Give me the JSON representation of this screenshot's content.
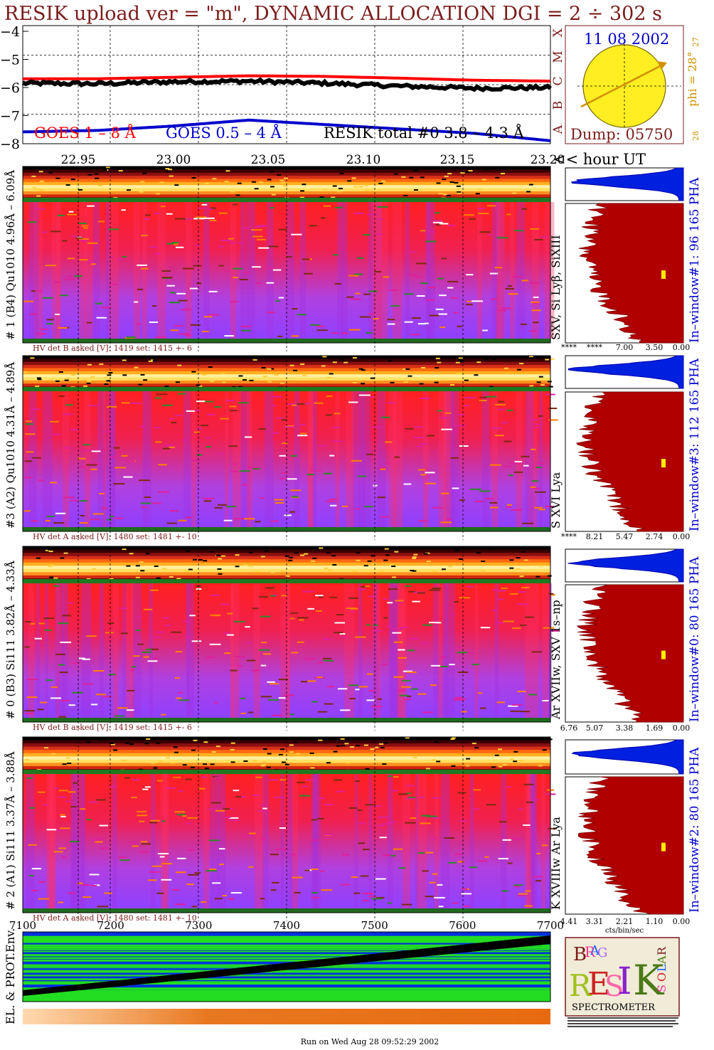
{
  "header": {
    "title": "RESIK upload ver = \"m\", DYNAMIC ALLOCATION  DGI =   2 ÷ 302 s",
    "title_color": "#7a1c1c"
  },
  "lightcurve": {
    "y_ticks": [
      "−4",
      "−5",
      "−6",
      "−7",
      "−8"
    ],
    "ylim": [
      -8,
      -4
    ],
    "legend": [
      {
        "label": "GOES 1 – 8 Å",
        "color": "#ff0000"
      },
      {
        "label": "GOES 0.5 – 4 Å",
        "color": "#0000cc"
      },
      {
        "label": "RESIK total #0  3.8 – 4.3 Å",
        "color": "#000000"
      }
    ],
    "class_letters": [
      "X",
      "M",
      "C",
      "B",
      "A"
    ],
    "time_ticks": [
      "22.95",
      "23.00",
      "23.05",
      "23.10",
      "23.15",
      "23.20"
    ],
    "time_axis_label": "<< hour UT"
  },
  "sun_panel": {
    "date": "11 08 2002",
    "phi": "phi = 28°",
    "side_top": "27",
    "side_bottom": "28",
    "dump": "Dump: 05750"
  },
  "detectors": [
    {
      "left_label": "# 1 (B4) Qu1010 4.96Å – 6.09Å",
      "right_label": "SXV, Si Lyβ, SiXIII",
      "hv_text": "HV det B asked [V]:  1419 set:  1415 +-   6",
      "pha_label": "In–window#1:  96 165 PHA",
      "axis_ticks": [
        "****",
        "****",
        "7.00",
        "3.50",
        "0.00"
      ]
    },
    {
      "left_label": "#3 (A2) Qu1010  4.31Å – 4.89Å",
      "right_label": "S XVI Lya",
      "hv_text": "HV det A asked [V]:  1480 set:  1481 +-   10",
      "pha_label": "In–window#3:  112 165 PHA",
      "axis_ticks": [
        "****",
        "8.21",
        "5.47",
        "2.74",
        "0.00"
      ]
    },
    {
      "left_label": "# 0 (B3) Si111  3.82Å – 4.33Å",
      "right_label": "Ar XVIIw,  SXV 1s–np",
      "hv_text": "HV det B asked [V]:  1419 set:  1415 +-   6",
      "pha_label": "In–window#0:  80 165 PHA",
      "axis_ticks": [
        "6.76",
        "5.07",
        "3.38",
        "1.69",
        "0.00"
      ]
    },
    {
      "left_label": "# 2 (A1) Si111  3.37Å – 3.88Å",
      "right_label": "K XVIIIw  Ar Lya",
      "hv_text": "HV det A asked [V]:  1480 set:  1481 +-   10",
      "pha_label": "In–window#2:  80 165 PHA",
      "axis_ticks": [
        "4.41",
        "3.31",
        "2.21",
        "1.10",
        "0.00"
      ]
    }
  ],
  "pha_axis_unit": "cts/bin/sec",
  "bottom_axis": {
    "ticks": [
      "7100",
      "7200",
      "7300",
      "7400",
      "7500",
      "7600",
      "7700"
    ]
  },
  "env": {
    "label": "EL. & PROT.Env."
  },
  "logo": {
    "letters": [
      "B",
      "R",
      "A",
      "G",
      "R",
      "E",
      "S",
      "I",
      "K",
      "S",
      "O",
      "L",
      "A",
      "R"
    ],
    "subtitle": "SPECTROMETER"
  },
  "footer": {
    "run_text": "Run on Wed Aug 28 09:52:29 2002"
  },
  "chart_data": {
    "type": "line",
    "title": "RESIK upload ver = \"m\", DYNAMIC ALLOCATION  DGI =   2 ÷ 302 s",
    "xlabel": "<< hour UT",
    "ylabel": "",
    "xlim": [
      22.92,
      23.2
    ],
    "ylim": [
      -8,
      -4
    ],
    "grid": true,
    "x": [
      22.92,
      22.96,
      23.0,
      23.04,
      23.08,
      23.12,
      23.16,
      23.2
    ],
    "series": [
      {
        "name": "GOES 1 – 8 Å",
        "color": "#ff0000",
        "values": [
          -5.8,
          -5.8,
          -5.75,
          -5.7,
          -5.72,
          -5.78,
          -5.85,
          -5.88
        ]
      },
      {
        "name": "GOES 0.5 – 4 Å",
        "color": "#0000cc",
        "values": [
          -7.6,
          -7.55,
          -7.4,
          -7.2,
          -7.35,
          -7.5,
          -7.65,
          -7.9
        ]
      },
      {
        "name": "RESIK total #0  3.8 – 4.3 Å",
        "color": "#000000",
        "values": [
          -5.95,
          -5.97,
          -5.9,
          -5.88,
          -5.95,
          -6.05,
          -6.12,
          -6.1
        ]
      }
    ]
  }
}
